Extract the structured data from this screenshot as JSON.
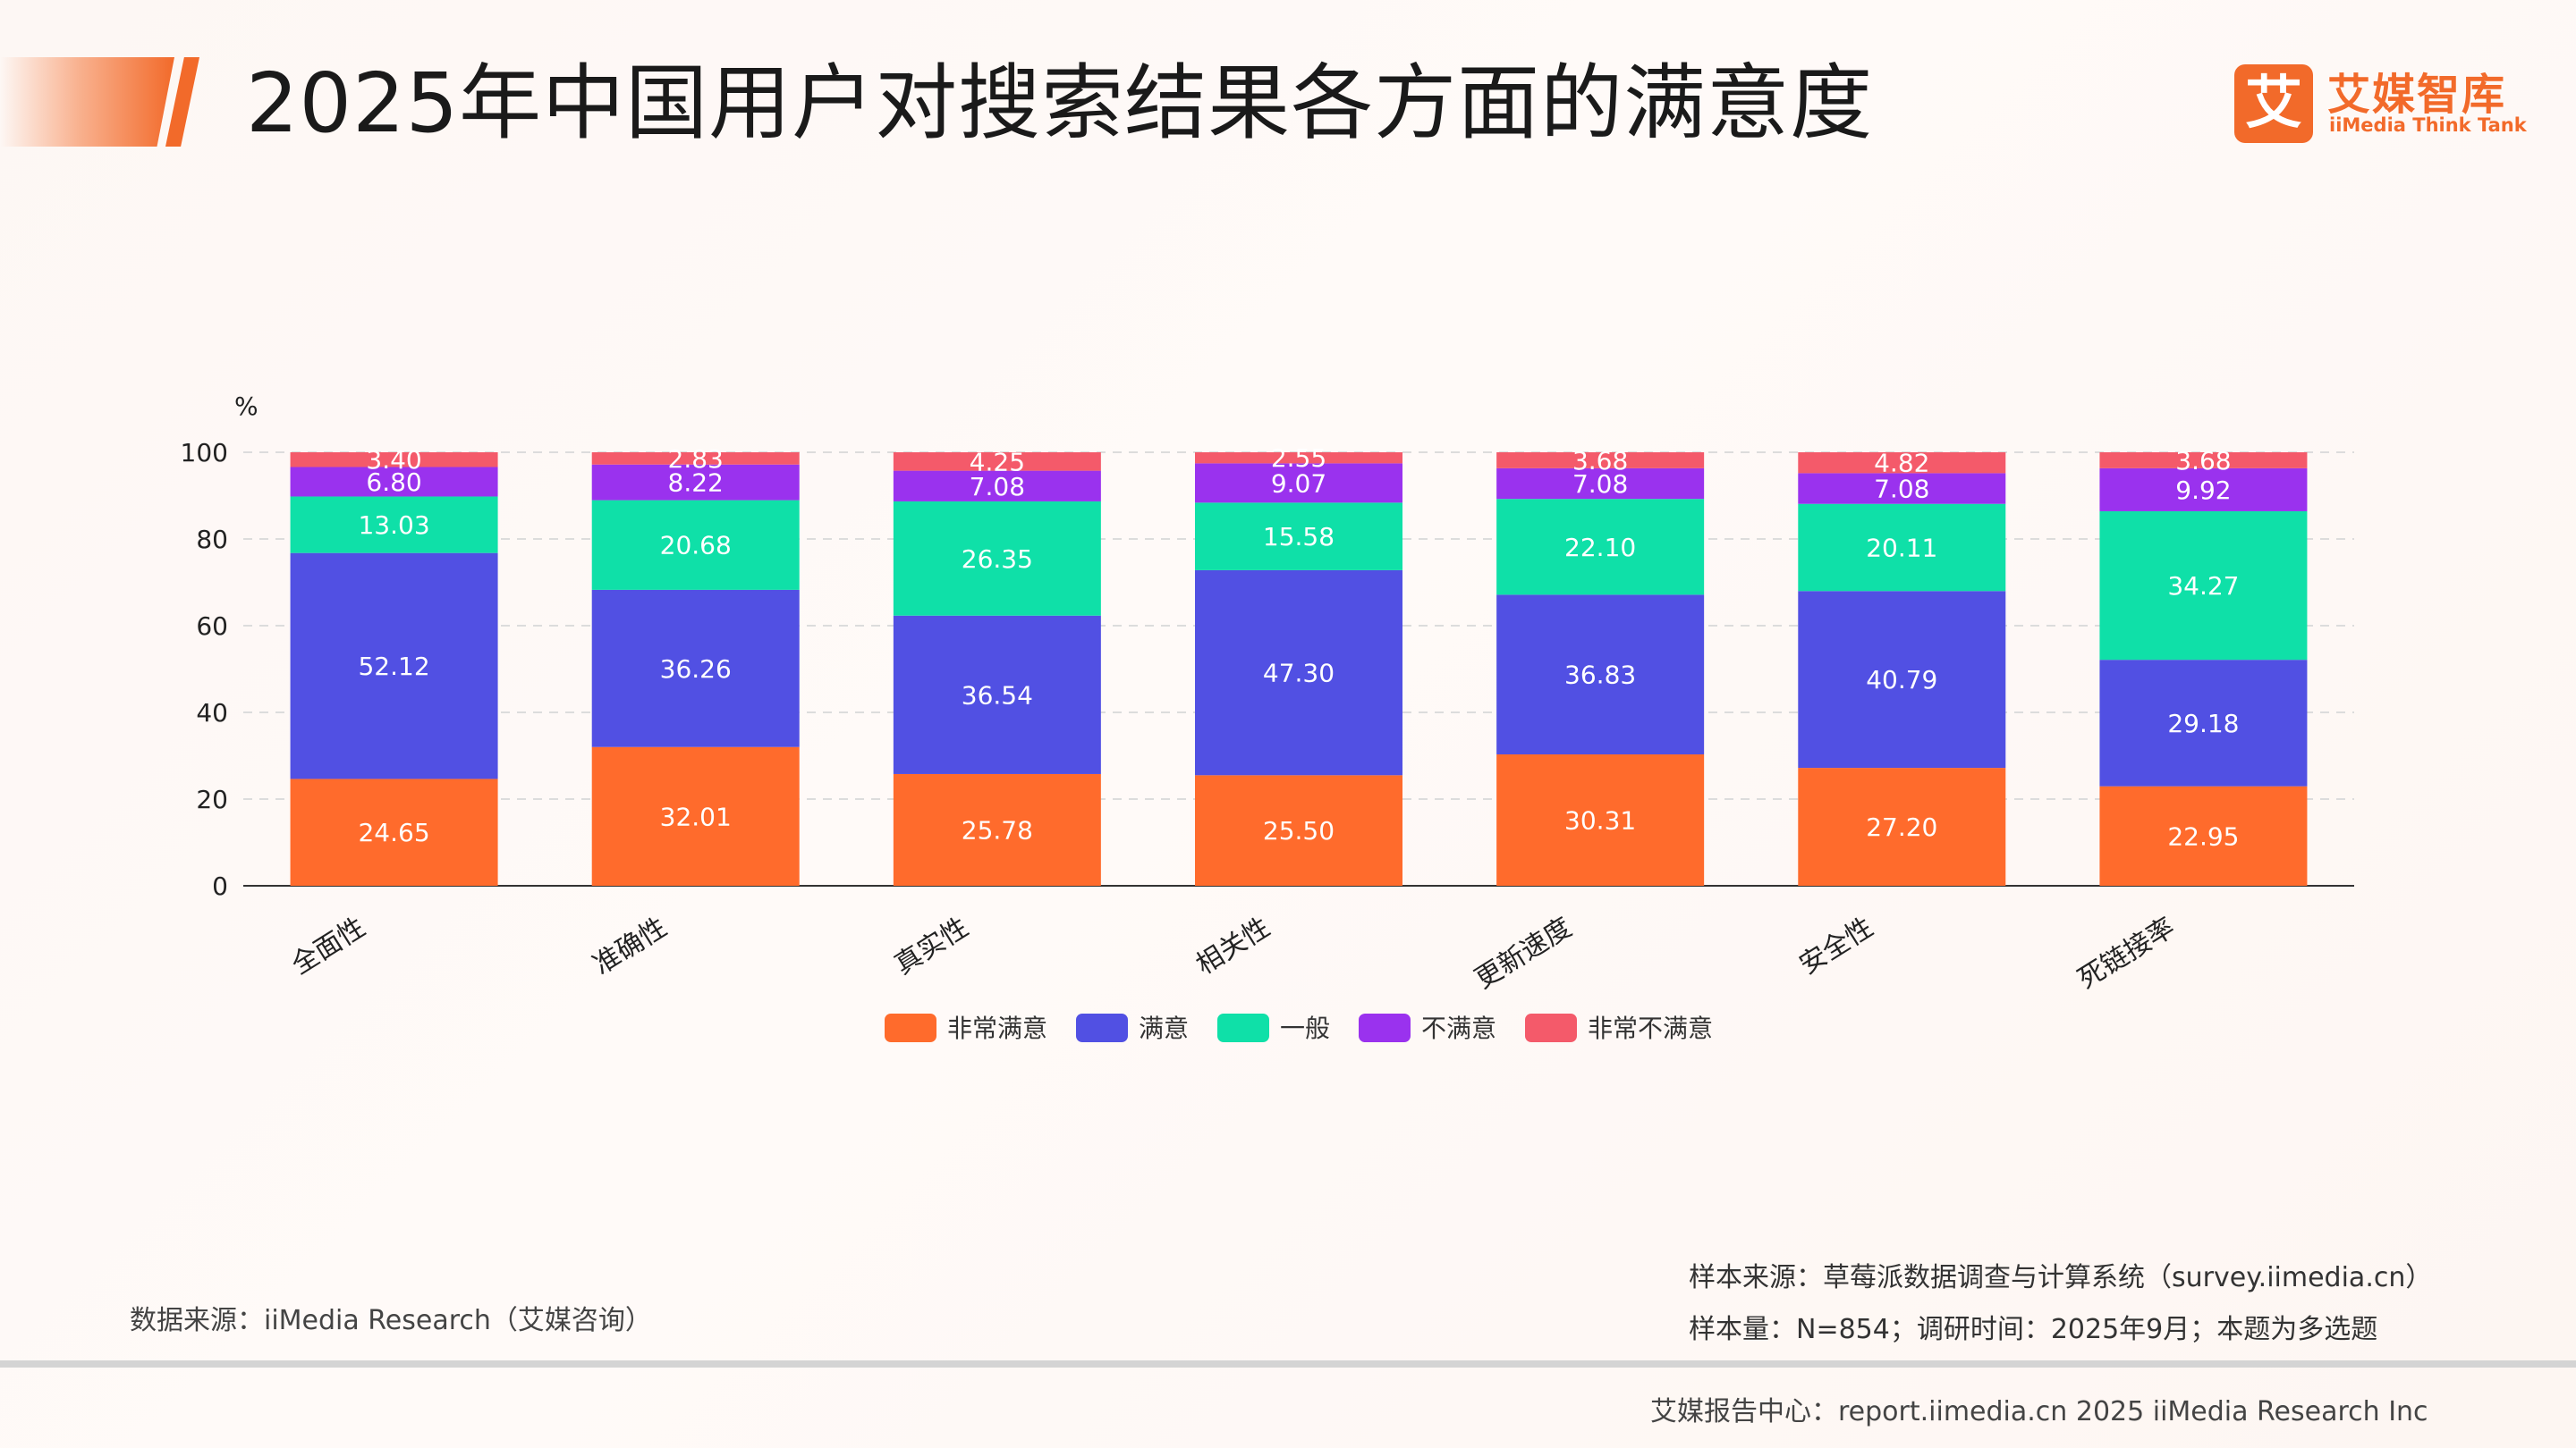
{
  "title": "2025年中国用户对搜索结果各方面的满意度",
  "logo": {
    "mark": "艾",
    "name_cn": "艾媒智库",
    "name_en": "iiMedia Think Tank"
  },
  "chart_data": {
    "type": "bar",
    "stacked": true,
    "title": "",
    "unit": "%",
    "ylim": [
      0,
      100
    ],
    "yticks": [
      0,
      20,
      40,
      60,
      80,
      100
    ],
    "grid": true,
    "legend_position": "bottom",
    "categories": [
      "全面性",
      "准确性",
      "真实性",
      "相关性",
      "更新速度",
      "安全性",
      "死链接率"
    ],
    "series": [
      {
        "name": "非常满意",
        "color": "#ff6b2c",
        "values": [
          24.65,
          32.01,
          25.78,
          25.5,
          30.31,
          27.2,
          22.95
        ]
      },
      {
        "name": "满意",
        "color": "#5150e3",
        "values": [
          52.12,
          36.26,
          36.54,
          47.3,
          36.83,
          40.79,
          29.18
        ]
      },
      {
        "name": "一般",
        "color": "#0fe0a8",
        "values": [
          13.03,
          20.68,
          26.35,
          15.58,
          22.1,
          20.11,
          34.27
        ]
      },
      {
        "name": "不满意",
        "color": "#9a32ee",
        "values": [
          6.8,
          8.22,
          7.08,
          9.07,
          7.08,
          7.08,
          9.92
        ]
      },
      {
        "name": "非常不满意",
        "color": "#f45a6a",
        "values": [
          3.4,
          2.83,
          4.25,
          2.55,
          3.68,
          4.82,
          3.68
        ]
      }
    ]
  },
  "footer": {
    "data_source": "数据来源：iiMedia Research（艾媒咨询）",
    "sample_source": "样本来源：草莓派数据调查与计算系统（survey.iimedia.cn）",
    "sample_size": "样本量：N=854；调研时间：2025年9月；本题为多选题",
    "report_center": "艾媒报告中心：report.iimedia.cn   2025 iiMedia Research Inc"
  }
}
